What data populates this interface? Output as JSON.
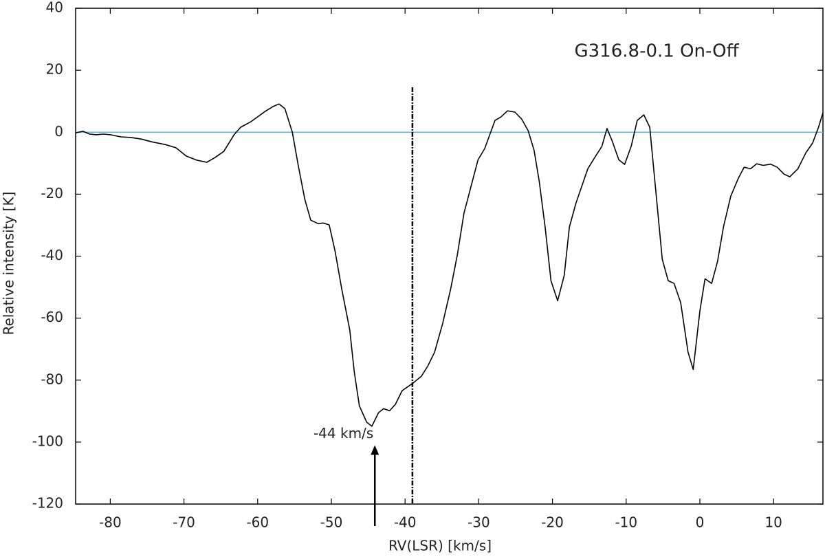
{
  "chart_data": {
    "type": "line",
    "title": "G316.8-0.1  On-Off",
    "x_label": "RV(LSR) [km/s]",
    "y_label": "Relative intensity   [K]",
    "x": [
      -84.7,
      -83.7,
      -82.8,
      -81.9,
      -80.9,
      -80,
      -78.6,
      -77.2,
      -75.8,
      -74.4,
      -72.5,
      -71.1,
      -69.7,
      -68.3,
      -66.9,
      -65.8,
      -64.6,
      -63.2,
      -62.3,
      -60.9,
      -59.0,
      -57.9,
      -57.1,
      -56.3,
      -55.3,
      -54.5,
      -53.6,
      -52.8,
      -51.8,
      -51.1,
      -50.3,
      -49.5,
      -48.6,
      -47.5,
      -46.9,
      -46.2,
      -45.2,
      -44.5,
      -43.6,
      -42.9,
      -42.1,
      -41.3,
      -40.4,
      -39.0,
      -37.8,
      -36.9,
      -36.0,
      -34.9,
      -33.8,
      -32.9,
      -32.0,
      -30.1,
      -29.2,
      -27.8,
      -27.0,
      -26.1,
      -25.1,
      -24.2,
      -23.3,
      -22.5,
      -21.8,
      -21.0,
      -20.2,
      -19.3,
      -18.4,
      -17.7,
      -16.8,
      -15.2,
      -14.2,
      -13.3,
      -12.6,
      -11.9,
      -11.0,
      -10.2,
      -9.3,
      -8.5,
      -7.6,
      -6.8,
      -5.1,
      -4.3,
      -3.5,
      -2.6,
      -1.6,
      -0.9,
      0.0,
      0.7,
      1.6,
      2.4,
      3.2,
      4.2,
      5.2,
      6.0,
      6.9,
      7.7,
      8.6,
      9.6,
      10.5,
      11.4,
      12.2,
      13.3,
      14.4,
      15.3,
      16.1,
      16.7
    ],
    "values": [
      -0.2,
      0.3,
      -0.6,
      -0.8,
      -0.6,
      -0.8,
      -1.5,
      -1.7,
      -2.2,
      -3.1,
      -4,
      -5,
      -7.7,
      -9,
      -9.7,
      -8.2,
      -6.2,
      -0.8,
      1.6,
      3.4,
      6.7,
      8.3,
      9.1,
      7.6,
      0,
      -10.6,
      -21.7,
      -28.4,
      -29.5,
      -29.3,
      -29.9,
      -38.3,
      -50.5,
      -63.9,
      -77.2,
      -88.3,
      -93.6,
      -94.9,
      -90.5,
      -89.2,
      -89.9,
      -87.8,
      -83.4,
      -81.1,
      -78.8,
      -75.4,
      -71,
      -61.7,
      -50.5,
      -39.5,
      -26.1,
      -8.9,
      -5.3,
      3.8,
      4.9,
      6.9,
      6.5,
      4.3,
      0.5,
      -5.8,
      -15.8,
      -30.6,
      -47.9,
      -54.4,
      -46.2,
      -30.6,
      -22.8,
      -11.8,
      -7.9,
      -4.6,
      1.2,
      -2.8,
      -8.9,
      -10.4,
      -4.4,
      3.8,
      5.6,
      1.6,
      -41,
      -47.9,
      -48.8,
      -55,
      -71,
      -76.6,
      -57.7,
      -47.3,
      -48.8,
      -41.7,
      -30.6,
      -20.6,
      -15,
      -11.3,
      -11.8,
      -10.2,
      -10.7,
      -10.3,
      -11.3,
      -13.5,
      -14.4,
      -11.8,
      -6.6,
      -3.5,
      1.6,
      6.3
    ],
    "color": "#000000",
    "xlim": [
      -84.7,
      16.7
    ],
    "xticks": [
      -80,
      -70,
      -60,
      -50,
      -40,
      -30,
      -20,
      -10,
      0,
      10
    ],
    "ylim": [
      -120,
      40
    ],
    "yticks": [
      -120,
      -100,
      -80,
      -60,
      -40,
      -20,
      0,
      20,
      40
    ],
    "hline": {
      "y": 0,
      "color": "#5bb4e5"
    },
    "vline": {
      "x": -39,
      "ymax": 14.5,
      "color": "#000000"
    },
    "annotation": {
      "text": "-44 km/s",
      "x": -44.1,
      "y": -101
    }
  }
}
